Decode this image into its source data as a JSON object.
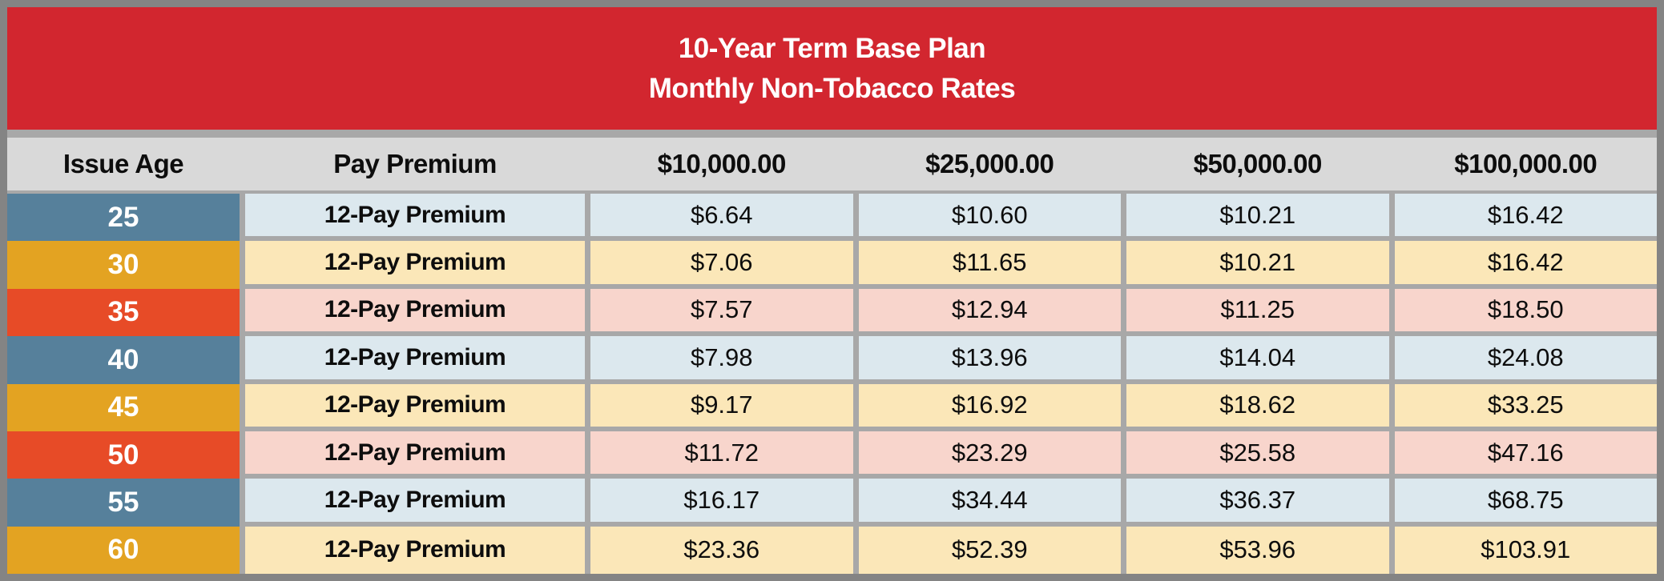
{
  "banner": {
    "title_line1": "10-Year Term Base Plan",
    "title_line2": "Monthly Non-Tobacco Rates"
  },
  "table": {
    "headers": [
      "Issue Age",
      "Pay Premium",
      "$10,000.00",
      "$25,000.00",
      "$50,000.00",
      "$100,000.00"
    ],
    "rows": [
      {
        "age": "25",
        "premium_label": "12-Pay Premium",
        "rates": [
          "$6.64",
          "$10.60",
          "$10.21",
          "$16.42"
        ]
      },
      {
        "age": "30",
        "premium_label": "12-Pay Premium",
        "rates": [
          "$7.06",
          "$11.65",
          "$10.21",
          "$16.42"
        ]
      },
      {
        "age": "35",
        "premium_label": "12-Pay Premium",
        "rates": [
          "$7.57",
          "$12.94",
          "$11.25",
          "$18.50"
        ]
      },
      {
        "age": "40",
        "premium_label": "12-Pay Premium",
        "rates": [
          "$7.98",
          "$13.96",
          "$14.04",
          "$24.08"
        ]
      },
      {
        "age": "45",
        "premium_label": "12-Pay Premium",
        "rates": [
          "$9.17",
          "$16.92",
          "$18.62",
          "$33.25"
        ]
      },
      {
        "age": "50",
        "premium_label": "12-Pay Premium",
        "rates": [
          "$11.72",
          "$23.29",
          "$25.58",
          "$47.16"
        ]
      },
      {
        "age": "55",
        "premium_label": "12-Pay Premium",
        "rates": [
          "$16.17",
          "$34.44",
          "$36.37",
          "$68.75"
        ]
      },
      {
        "age": "60",
        "premium_label": "12-Pay Premium",
        "rates": [
          "$23.36",
          "$52.39",
          "$53.96",
          "$103.91"
        ]
      }
    ]
  },
  "colors": {
    "frame-gray": "#848484",
    "grid-gray": "#a8a8a8",
    "banner-red": "#d2262f",
    "header-gray": "#d9d9d9",
    "steel-blue": "#56809b",
    "amber": "#e3a322",
    "orange-red": "#e74b27",
    "tint-blue": "#dce8ee",
    "tint-cream": "#fbe7b8",
    "tint-pink": "#f8d5cc",
    "text-dark": "#0d0d0d",
    "text-light": "#ffffff"
  }
}
